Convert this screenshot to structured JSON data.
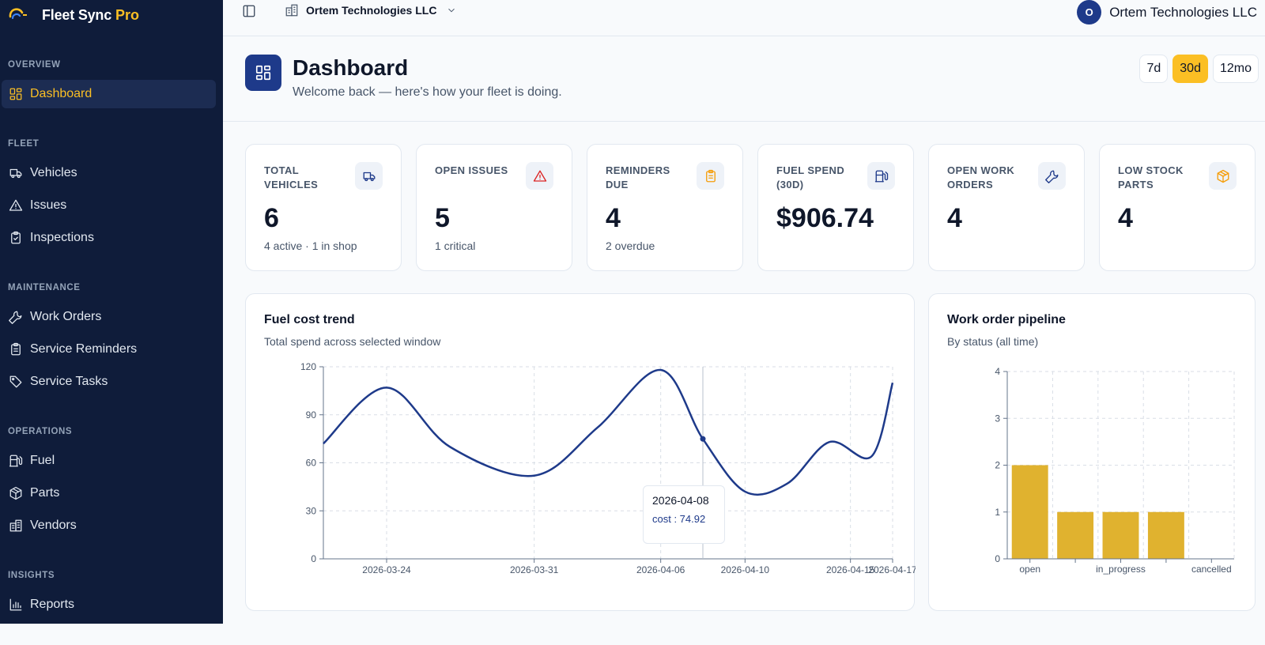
{
  "brand": {
    "name": "Fleet Sync",
    "suffix": "Pro"
  },
  "sidebar": {
    "sections": [
      {
        "label": "OVERVIEW"
      },
      {
        "label": "FLEET"
      },
      {
        "label": "MAINTENANCE"
      },
      {
        "label": "OPERATIONS"
      },
      {
        "label": "INSIGHTS"
      }
    ],
    "items": [
      {
        "label": "Dashboard",
        "icon": "grid-icon",
        "active": true
      },
      {
        "label": "Vehicles",
        "icon": "truck-icon"
      },
      {
        "label": "Issues",
        "icon": "warning-icon"
      },
      {
        "label": "Inspections",
        "icon": "clipboard-check-icon"
      },
      {
        "label": "Work Orders",
        "icon": "wrench-icon"
      },
      {
        "label": "Service Reminders",
        "icon": "clipboard-list-icon"
      },
      {
        "label": "Service Tasks",
        "icon": "tag-icon"
      },
      {
        "label": "Fuel",
        "icon": "fuel-icon"
      },
      {
        "label": "Parts",
        "icon": "box-icon"
      },
      {
        "label": "Vendors",
        "icon": "building-icon"
      },
      {
        "label": "Reports",
        "icon": "bar-chart-icon"
      }
    ]
  },
  "topbar": {
    "org_name": "Ortem Technologies LLC",
    "user_initial": "O",
    "user_name": "Ortem Technologies LLC"
  },
  "header": {
    "title": "Dashboard",
    "subtitle": "Welcome back — here's how your fleet is doing.",
    "ranges": [
      "7d",
      "30d",
      "12mo"
    ],
    "active_range": "30d"
  },
  "kpis": [
    {
      "label": "TOTAL VEHICLES",
      "value": "6",
      "sub": "4 active · 1 in shop",
      "icon": "truck-icon",
      "color": "#1e3a8a"
    },
    {
      "label": "OPEN ISSUES",
      "value": "5",
      "sub": "1 critical",
      "icon": "warning-icon",
      "color": "#dc2626"
    },
    {
      "label": "REMINDERS DUE",
      "value": "4",
      "sub": "2 overdue",
      "icon": "clipboard-icon",
      "color": "#f59e0b"
    },
    {
      "label": "FUEL SPEND (30D)",
      "value": "$906.74",
      "sub": "",
      "icon": "fuel-icon",
      "color": "#1e3a8a"
    },
    {
      "label": "OPEN WORK ORDERS",
      "value": "4",
      "sub": "",
      "icon": "wrench-icon",
      "color": "#1e3a8a"
    },
    {
      "label": "LOW STOCK PARTS",
      "value": "4",
      "sub": "",
      "icon": "box-icon",
      "color": "#f59e0b"
    }
  ],
  "fuel_card": {
    "title": "Fuel cost trend",
    "subtitle": "Total spend across selected window"
  },
  "pipeline_card": {
    "title": "Work order pipeline",
    "subtitle": "By status (all time)"
  },
  "tooltip": {
    "date": "2026-04-08",
    "text": "cost : 74.92"
  },
  "colors": {
    "navy": "#1e3a8a",
    "accent": "#fbbf24",
    "bar": "#e0b22f",
    "sidebar": "#0f1c3a"
  },
  "chart_data": [
    {
      "type": "line",
      "title": "Fuel cost trend",
      "x_ticks": [
        "2026-03-24",
        "2026-03-31",
        "2026-04-06",
        "2026-04-10",
        "2026-04-15",
        "2026-04-17"
      ],
      "y_ticks": [
        0,
        30,
        60,
        90,
        120
      ],
      "ylim": [
        0,
        120
      ],
      "series": [
        {
          "points": [
            {
              "x": "2026-03-21",
              "y": 72
            },
            {
              "x": "2026-03-24",
              "y": 107
            },
            {
              "x": "2026-03-27",
              "y": 70
            },
            {
              "x": "2026-03-31",
              "y": 52
            },
            {
              "x": "2026-04-03",
              "y": 82
            },
            {
              "x": "2026-04-06",
              "y": 118
            },
            {
              "x": "2026-04-08",
              "y": 74.92
            },
            {
              "x": "2026-04-10",
              "y": 42
            },
            {
              "x": "2026-04-12",
              "y": 47
            },
            {
              "x": "2026-04-14",
              "y": 73
            },
            {
              "x": "2026-04-16",
              "y": 64
            },
            {
              "x": "2026-04-17",
              "y": 110
            }
          ]
        }
      ],
      "grid": true
    },
    {
      "type": "bar",
      "title": "Work order pipeline",
      "categories": [
        "open",
        "",
        "in_progress",
        "",
        "cancelled"
      ],
      "values": [
        2,
        1,
        1,
        1,
        0
      ],
      "y_ticks": [
        0,
        1,
        2,
        3,
        4
      ],
      "ylim": [
        0,
        4
      ],
      "grid": true
    }
  ]
}
